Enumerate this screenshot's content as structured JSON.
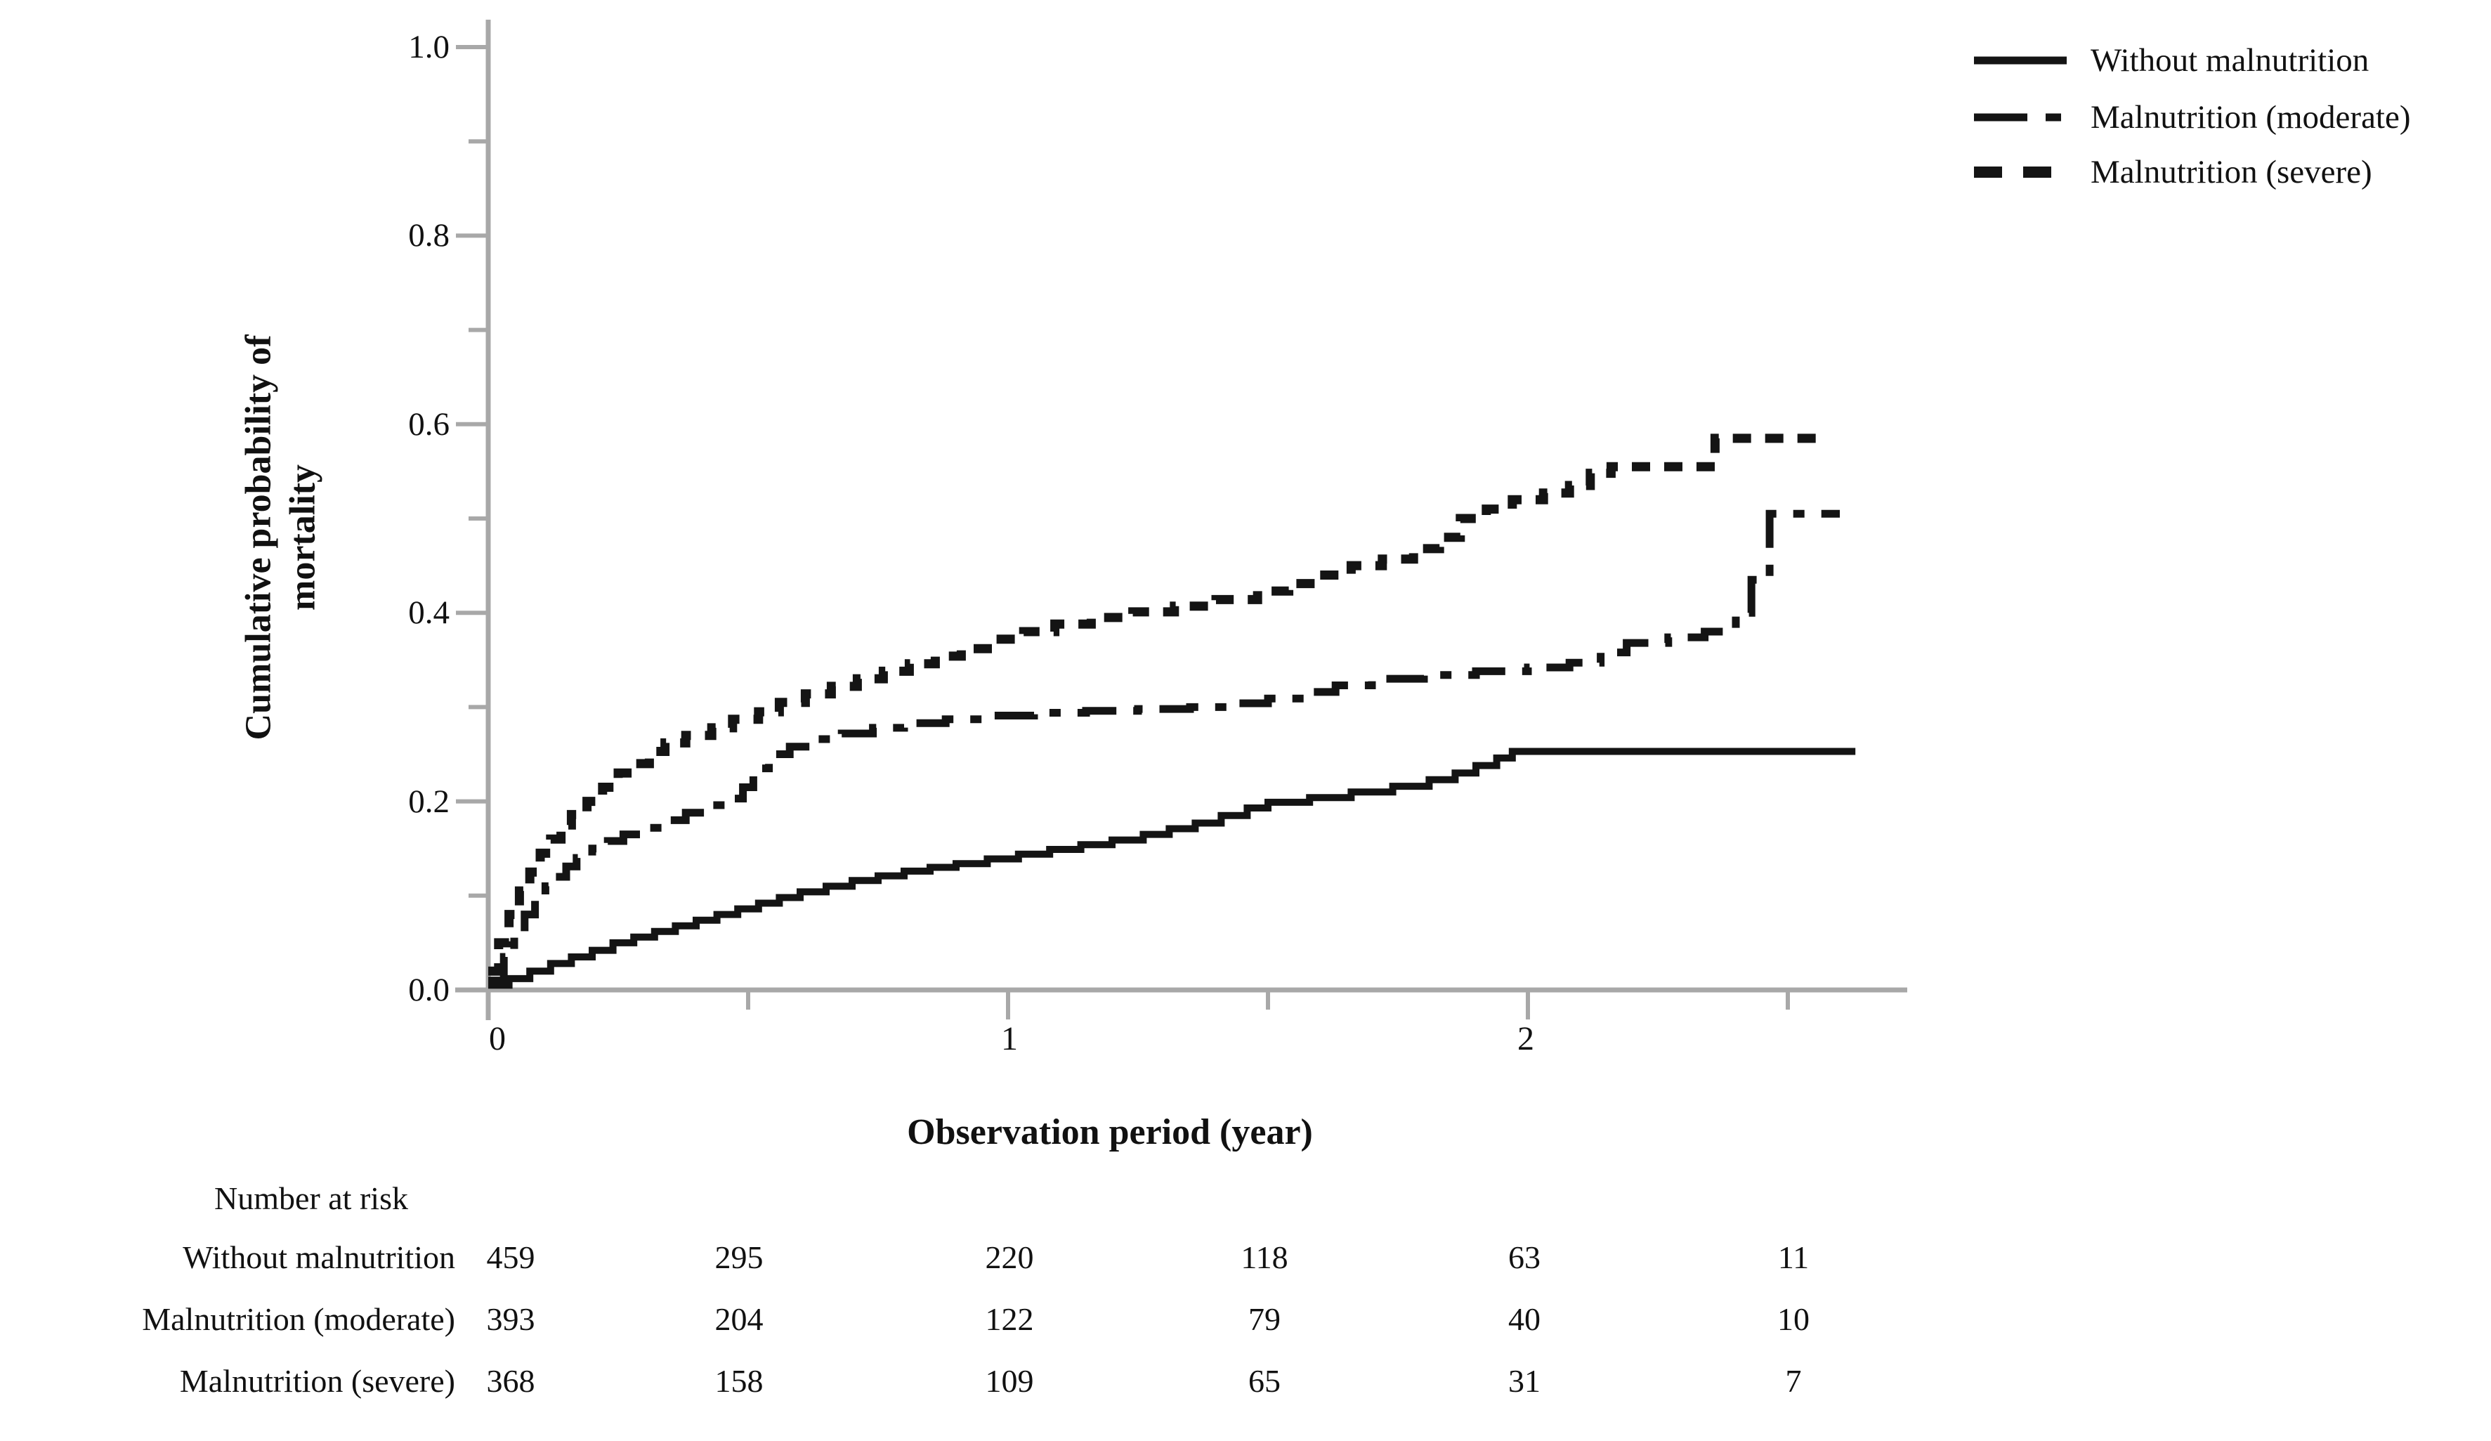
{
  "figure": {
    "y_axis": {
      "title_line1": "Cumulative probability of",
      "title_line2": "mortality",
      "tick_labels": [
        "1.0",
        "0.8",
        "0.6",
        "0.4",
        "0.2",
        "0.0"
      ]
    },
    "x_axis": {
      "title": "Observation period (year)",
      "tick_labels": [
        "0",
        "1",
        "2"
      ]
    },
    "legend": {
      "items": [
        {
          "label": "Without malnutrition",
          "style": "solid"
        },
        {
          "label": "Malnutrition (moderate)",
          "style": "dashdot"
        },
        {
          "label": "Malnutrition (severe)",
          "style": "dash"
        }
      ]
    },
    "risk_table": {
      "header": "Number at risk",
      "rows": [
        {
          "label": "Without malnutrition",
          "values": [
            "459",
            "295",
            "220",
            "118",
            "63",
            "11"
          ]
        },
        {
          "label": "Malnutrition (moderate)",
          "values": [
            "393",
            "204",
            "122",
            "79",
            "40",
            "10"
          ]
        },
        {
          "label": "Malnutrition (severe)",
          "values": [
            "368",
            "158",
            "109",
            "65",
            "31",
            "7"
          ]
        }
      ]
    }
  },
  "chart_data": {
    "type": "line",
    "subtype": "kaplan-meier-step",
    "title": "",
    "xlabel": "Observation period (year)",
    "ylabel": "Cumulative probability of mortality",
    "xlim": [
      0,
      2.73
    ],
    "ylim": [
      0,
      1.0
    ],
    "grid": false,
    "legend_position": "top-right",
    "x_ticks_major": [
      0,
      1,
      2
    ],
    "x_ticks_minor": [
      0.5,
      1.5,
      2.5
    ],
    "y_ticks_major": [
      0,
      0.2,
      0.4,
      0.6,
      0.8,
      1.0
    ],
    "y_ticks_minor": [
      0.1,
      0.3,
      0.5,
      0.7,
      0.9
    ],
    "risk_table_times": [
      0,
      0.5,
      1,
      1.5,
      2,
      2.5
    ],
    "series": [
      {
        "name": "Without malnutrition",
        "line": "solid",
        "step": true,
        "t_end": 2.63,
        "points": [
          [
            0,
            0.005
          ],
          [
            0.04,
            0.012
          ],
          [
            0.08,
            0.02
          ],
          [
            0.12,
            0.028
          ],
          [
            0.16,
            0.035
          ],
          [
            0.2,
            0.042
          ],
          [
            0.24,
            0.05
          ],
          [
            0.28,
            0.056
          ],
          [
            0.32,
            0.062
          ],
          [
            0.36,
            0.068
          ],
          [
            0.4,
            0.074
          ],
          [
            0.44,
            0.08
          ],
          [
            0.48,
            0.086
          ],
          [
            0.52,
            0.092
          ],
          [
            0.56,
            0.098
          ],
          [
            0.6,
            0.104
          ],
          [
            0.65,
            0.11
          ],
          [
            0.7,
            0.116
          ],
          [
            0.75,
            0.121
          ],
          [
            0.8,
            0.126
          ],
          [
            0.85,
            0.13
          ],
          [
            0.9,
            0.134
          ],
          [
            0.96,
            0.139
          ],
          [
            1.02,
            0.144
          ],
          [
            1.08,
            0.149
          ],
          [
            1.14,
            0.154
          ],
          [
            1.2,
            0.159
          ],
          [
            1.26,
            0.165
          ],
          [
            1.31,
            0.171
          ],
          [
            1.36,
            0.177
          ],
          [
            1.41,
            0.185
          ],
          [
            1.46,
            0.193
          ],
          [
            1.5,
            0.199
          ],
          [
            1.58,
            0.204
          ],
          [
            1.66,
            0.21
          ],
          [
            1.74,
            0.216
          ],
          [
            1.81,
            0.223
          ],
          [
            1.86,
            0.23
          ],
          [
            1.9,
            0.238
          ],
          [
            1.94,
            0.246
          ],
          [
            1.97,
            0.253
          ]
        ]
      },
      {
        "name": "Malnutrition (moderate)",
        "line": "dashdot",
        "step": true,
        "t_end": 2.6,
        "points": [
          [
            0,
            0.01
          ],
          [
            0.03,
            0.035
          ],
          [
            0.05,
            0.06
          ],
          [
            0.07,
            0.08
          ],
          [
            0.09,
            0.095
          ],
          [
            0.11,
            0.11
          ],
          [
            0.13,
            0.12
          ],
          [
            0.15,
            0.131
          ],
          [
            0.17,
            0.14
          ],
          [
            0.2,
            0.15
          ],
          [
            0.23,
            0.158
          ],
          [
            0.26,
            0.165
          ],
          [
            0.3,
            0.172
          ],
          [
            0.34,
            0.18
          ],
          [
            0.38,
            0.188
          ],
          [
            0.42,
            0.196
          ],
          [
            0.46,
            0.203
          ],
          [
            0.49,
            0.215
          ],
          [
            0.51,
            0.235
          ],
          [
            0.54,
            0.25
          ],
          [
            0.58,
            0.258
          ],
          [
            0.63,
            0.266
          ],
          [
            0.68,
            0.272
          ],
          [
            0.74,
            0.278
          ],
          [
            0.8,
            0.283
          ],
          [
            0.88,
            0.287
          ],
          [
            0.96,
            0.291
          ],
          [
            1.05,
            0.294
          ],
          [
            1.15,
            0.296
          ],
          [
            1.25,
            0.298
          ],
          [
            1.35,
            0.3
          ],
          [
            1.43,
            0.304
          ],
          [
            1.5,
            0.309
          ],
          [
            1.57,
            0.316
          ],
          [
            1.63,
            0.323
          ],
          [
            1.7,
            0.33
          ],
          [
            1.8,
            0.334
          ],
          [
            1.9,
            0.338
          ],
          [
            2.0,
            0.342
          ],
          [
            2.08,
            0.347
          ],
          [
            2.14,
            0.358
          ],
          [
            2.19,
            0.368
          ],
          [
            2.27,
            0.374
          ],
          [
            2.34,
            0.38
          ],
          [
            2.4,
            0.4
          ],
          [
            2.43,
            0.435
          ],
          [
            2.465,
            0.505
          ]
        ]
      },
      {
        "name": "Malnutrition (severe)",
        "line": "dash",
        "step": true,
        "t_end": 2.58,
        "points": [
          [
            0,
            0.02
          ],
          [
            0.02,
            0.05
          ],
          [
            0.04,
            0.08
          ],
          [
            0.06,
            0.105
          ],
          [
            0.08,
            0.125
          ],
          [
            0.1,
            0.145
          ],
          [
            0.12,
            0.16
          ],
          [
            0.14,
            0.175
          ],
          [
            0.16,
            0.186
          ],
          [
            0.19,
            0.2
          ],
          [
            0.22,
            0.215
          ],
          [
            0.25,
            0.23
          ],
          [
            0.28,
            0.24
          ],
          [
            0.31,
            0.253
          ],
          [
            0.34,
            0.262
          ],
          [
            0.38,
            0.27
          ],
          [
            0.43,
            0.278
          ],
          [
            0.47,
            0.287
          ],
          [
            0.52,
            0.295
          ],
          [
            0.56,
            0.305
          ],
          [
            0.61,
            0.314
          ],
          [
            0.66,
            0.322
          ],
          [
            0.71,
            0.33
          ],
          [
            0.76,
            0.338
          ],
          [
            0.81,
            0.346
          ],
          [
            0.86,
            0.354
          ],
          [
            0.91,
            0.362
          ],
          [
            0.97,
            0.372
          ],
          [
            1.03,
            0.38
          ],
          [
            1.09,
            0.388
          ],
          [
            1.16,
            0.395
          ],
          [
            1.24,
            0.401
          ],
          [
            1.32,
            0.407
          ],
          [
            1.4,
            0.414
          ],
          [
            1.48,
            0.423
          ],
          [
            1.54,
            0.431
          ],
          [
            1.6,
            0.44
          ],
          [
            1.66,
            0.45
          ],
          [
            1.72,
            0.457
          ],
          [
            1.78,
            0.468
          ],
          [
            1.83,
            0.48
          ],
          [
            1.87,
            0.5
          ],
          [
            1.92,
            0.51
          ],
          [
            1.97,
            0.52
          ],
          [
            2.03,
            0.527
          ],
          [
            2.08,
            0.535
          ],
          [
            2.12,
            0.548
          ],
          [
            2.16,
            0.555
          ],
          [
            2.36,
            0.585
          ]
        ]
      }
    ]
  }
}
